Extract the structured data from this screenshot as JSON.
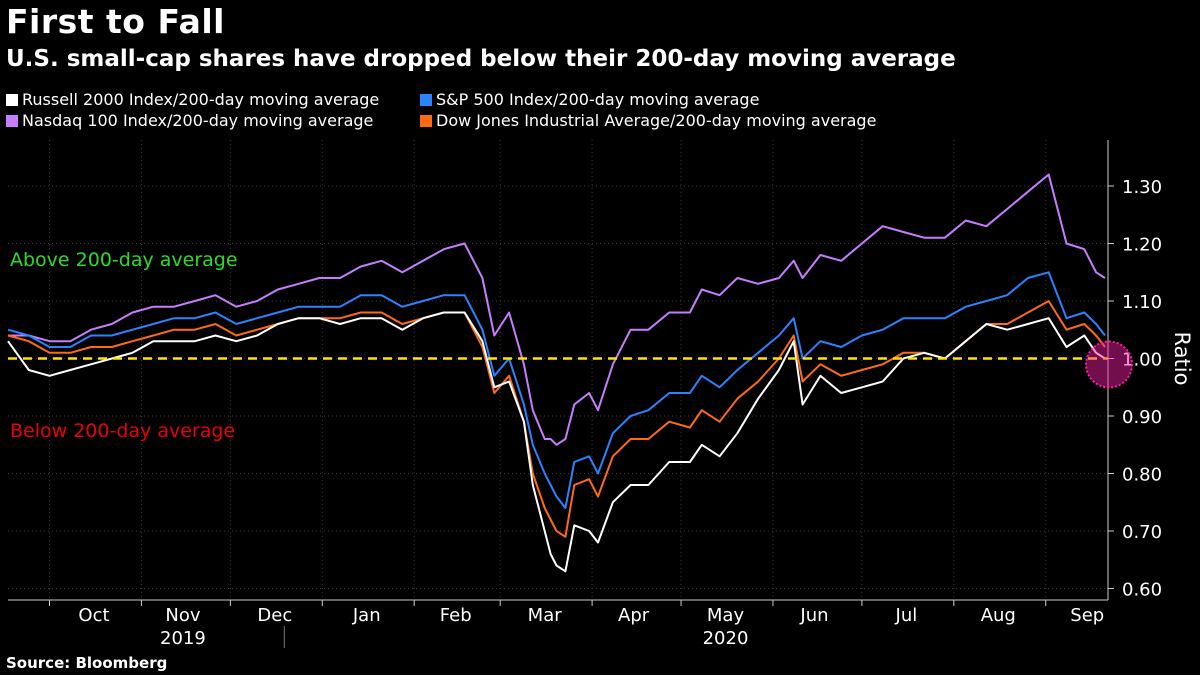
{
  "title": "First to Fall",
  "subtitle": "U.S. small-cap shares have dropped below their 200-day moving average",
  "source": "Source: Bloomberg",
  "chart_data": {
    "type": "line",
    "ylabel": "Ratio",
    "ylim": [
      0.58,
      1.38
    ],
    "yticks": [
      0.6,
      0.7,
      0.8,
      0.9,
      1.0,
      1.1,
      1.2,
      1.3
    ],
    "ytick_labels": [
      "0.60",
      "0.70",
      "0.80",
      "0.90",
      "1.00",
      "1.10",
      "1.20",
      "1.30"
    ],
    "xlim": [
      "2019-09-17",
      "2020-09-22"
    ],
    "x_month_labels": [
      {
        "label": "Oct",
        "date": "2019-10-16"
      },
      {
        "label": "Nov",
        "date": "2019-11-15"
      },
      {
        "label": "Dec",
        "date": "2019-12-16"
      },
      {
        "label": "Jan",
        "date": "2020-01-16"
      },
      {
        "label": "Feb",
        "date": "2020-02-15"
      },
      {
        "label": "Mar",
        "date": "2020-03-16"
      },
      {
        "label": "Apr",
        "date": "2020-04-15"
      },
      {
        "label": "May",
        "date": "2020-05-16"
      },
      {
        "label": "Jun",
        "date": "2020-06-15"
      },
      {
        "label": "Jul",
        "date": "2020-07-16"
      },
      {
        "label": "Aug",
        "date": "2020-08-16"
      },
      {
        "label": "Sep",
        "date": "2020-09-15"
      }
    ],
    "x_year_labels": [
      {
        "label": "2019",
        "date": "2019-11-15"
      },
      {
        "label": "2020",
        "date": "2020-05-16"
      }
    ],
    "reference_line": {
      "value": 1.0,
      "color": "#ffe600"
    },
    "annotations": [
      {
        "text": "Above 200-day average",
        "color": "#2bdc2b"
      },
      {
        "text": "Below 200-day average",
        "color": "#e8000b"
      }
    ],
    "highlight": {
      "date": "2020-09-21",
      "value": 1.0,
      "color": "#ff1fa8"
    },
    "series": [
      {
        "name": "Russell 2000 Index/200-day moving average",
        "color": "#ffffff",
        "points": [
          [
            "2019-09-17",
            1.03
          ],
          [
            "2019-09-24",
            0.98
          ],
          [
            "2019-10-01",
            0.97
          ],
          [
            "2019-10-08",
            0.98
          ],
          [
            "2019-10-15",
            0.99
          ],
          [
            "2019-10-22",
            1.0
          ],
          [
            "2019-10-29",
            1.01
          ],
          [
            "2019-11-05",
            1.03
          ],
          [
            "2019-11-12",
            1.03
          ],
          [
            "2019-11-19",
            1.03
          ],
          [
            "2019-11-26",
            1.04
          ],
          [
            "2019-12-03",
            1.03
          ],
          [
            "2019-12-10",
            1.04
          ],
          [
            "2019-12-17",
            1.06
          ],
          [
            "2019-12-24",
            1.07
          ],
          [
            "2019-12-31",
            1.07
          ],
          [
            "2020-01-07",
            1.06
          ],
          [
            "2020-01-14",
            1.07
          ],
          [
            "2020-01-21",
            1.07
          ],
          [
            "2020-01-28",
            1.05
          ],
          [
            "2020-02-04",
            1.07
          ],
          [
            "2020-02-11",
            1.08
          ],
          [
            "2020-02-18",
            1.08
          ],
          [
            "2020-02-24",
            1.03
          ],
          [
            "2020-02-28",
            0.95
          ],
          [
            "2020-03-04",
            0.96
          ],
          [
            "2020-03-09",
            0.89
          ],
          [
            "2020-03-12",
            0.78
          ],
          [
            "2020-03-16",
            0.7
          ],
          [
            "2020-03-18",
            0.66
          ],
          [
            "2020-03-20",
            0.64
          ],
          [
            "2020-03-23",
            0.63
          ],
          [
            "2020-03-26",
            0.71
          ],
          [
            "2020-03-31",
            0.7
          ],
          [
            "2020-04-03",
            0.68
          ],
          [
            "2020-04-08",
            0.75
          ],
          [
            "2020-04-14",
            0.78
          ],
          [
            "2020-04-20",
            0.78
          ],
          [
            "2020-04-27",
            0.82
          ],
          [
            "2020-05-04",
            0.82
          ],
          [
            "2020-05-08",
            0.85
          ],
          [
            "2020-05-14",
            0.83
          ],
          [
            "2020-05-20",
            0.87
          ],
          [
            "2020-05-27",
            0.93
          ],
          [
            "2020-06-03",
            0.98
          ],
          [
            "2020-06-08",
            1.03
          ],
          [
            "2020-06-11",
            0.92
          ],
          [
            "2020-06-17",
            0.97
          ],
          [
            "2020-06-24",
            0.94
          ],
          [
            "2020-07-01",
            0.95
          ],
          [
            "2020-07-08",
            0.96
          ],
          [
            "2020-07-15",
            1.0
          ],
          [
            "2020-07-22",
            1.01
          ],
          [
            "2020-07-29",
            1.0
          ],
          [
            "2020-08-05",
            1.03
          ],
          [
            "2020-08-12",
            1.06
          ],
          [
            "2020-08-19",
            1.05
          ],
          [
            "2020-08-26",
            1.06
          ],
          [
            "2020-09-02",
            1.07
          ],
          [
            "2020-09-08",
            1.02
          ],
          [
            "2020-09-14",
            1.04
          ],
          [
            "2020-09-18",
            1.01
          ],
          [
            "2020-09-21",
            1.0
          ]
        ]
      },
      {
        "name": "S&P 500 Index/200-day moving average",
        "color": "#2b83ff",
        "points": [
          [
            "2019-09-17",
            1.05
          ],
          [
            "2019-09-24",
            1.04
          ],
          [
            "2019-10-01",
            1.02
          ],
          [
            "2019-10-08",
            1.02
          ],
          [
            "2019-10-15",
            1.04
          ],
          [
            "2019-10-22",
            1.04
          ],
          [
            "2019-10-29",
            1.05
          ],
          [
            "2019-11-05",
            1.06
          ],
          [
            "2019-11-12",
            1.07
          ],
          [
            "2019-11-19",
            1.07
          ],
          [
            "2019-11-26",
            1.08
          ],
          [
            "2019-12-03",
            1.06
          ],
          [
            "2019-12-10",
            1.07
          ],
          [
            "2019-12-17",
            1.08
          ],
          [
            "2019-12-24",
            1.09
          ],
          [
            "2019-12-31",
            1.09
          ],
          [
            "2020-01-07",
            1.09
          ],
          [
            "2020-01-14",
            1.11
          ],
          [
            "2020-01-21",
            1.11
          ],
          [
            "2020-01-28",
            1.09
          ],
          [
            "2020-02-04",
            1.1
          ],
          [
            "2020-02-11",
            1.11
          ],
          [
            "2020-02-18",
            1.11
          ],
          [
            "2020-02-24",
            1.05
          ],
          [
            "2020-02-28",
            0.97
          ],
          [
            "2020-03-04",
            1.0
          ],
          [
            "2020-03-09",
            0.92
          ],
          [
            "2020-03-12",
            0.85
          ],
          [
            "2020-03-16",
            0.8
          ],
          [
            "2020-03-18",
            0.78
          ],
          [
            "2020-03-20",
            0.76
          ],
          [
            "2020-03-23",
            0.74
          ],
          [
            "2020-03-26",
            0.82
          ],
          [
            "2020-03-31",
            0.83
          ],
          [
            "2020-04-03",
            0.8
          ],
          [
            "2020-04-08",
            0.87
          ],
          [
            "2020-04-14",
            0.9
          ],
          [
            "2020-04-20",
            0.91
          ],
          [
            "2020-04-27",
            0.94
          ],
          [
            "2020-05-04",
            0.94
          ],
          [
            "2020-05-08",
            0.97
          ],
          [
            "2020-05-14",
            0.95
          ],
          [
            "2020-05-20",
            0.98
          ],
          [
            "2020-05-27",
            1.01
          ],
          [
            "2020-06-03",
            1.04
          ],
          [
            "2020-06-08",
            1.07
          ],
          [
            "2020-06-11",
            1.0
          ],
          [
            "2020-06-17",
            1.03
          ],
          [
            "2020-06-24",
            1.02
          ],
          [
            "2020-07-01",
            1.04
          ],
          [
            "2020-07-08",
            1.05
          ],
          [
            "2020-07-15",
            1.07
          ],
          [
            "2020-07-22",
            1.07
          ],
          [
            "2020-07-29",
            1.07
          ],
          [
            "2020-08-05",
            1.09
          ],
          [
            "2020-08-12",
            1.1
          ],
          [
            "2020-08-19",
            1.11
          ],
          [
            "2020-08-26",
            1.14
          ],
          [
            "2020-09-02",
            1.15
          ],
          [
            "2020-09-08",
            1.07
          ],
          [
            "2020-09-14",
            1.08
          ],
          [
            "2020-09-18",
            1.06
          ],
          [
            "2020-09-21",
            1.04
          ]
        ]
      },
      {
        "name": "Nasdaq 100 Index/200-day moving average",
        "color": "#c77dff",
        "points": [
          [
            "2019-09-17",
            1.04
          ],
          [
            "2019-09-24",
            1.04
          ],
          [
            "2019-10-01",
            1.03
          ],
          [
            "2019-10-08",
            1.03
          ],
          [
            "2019-10-15",
            1.05
          ],
          [
            "2019-10-22",
            1.06
          ],
          [
            "2019-10-29",
            1.08
          ],
          [
            "2019-11-05",
            1.09
          ],
          [
            "2019-11-12",
            1.09
          ],
          [
            "2019-11-19",
            1.1
          ],
          [
            "2019-11-26",
            1.11
          ],
          [
            "2019-12-03",
            1.09
          ],
          [
            "2019-12-10",
            1.1
          ],
          [
            "2019-12-17",
            1.12
          ],
          [
            "2019-12-24",
            1.13
          ],
          [
            "2019-12-31",
            1.14
          ],
          [
            "2020-01-07",
            1.14
          ],
          [
            "2020-01-14",
            1.16
          ],
          [
            "2020-01-21",
            1.17
          ],
          [
            "2020-01-28",
            1.15
          ],
          [
            "2020-02-04",
            1.17
          ],
          [
            "2020-02-11",
            1.19
          ],
          [
            "2020-02-18",
            1.2
          ],
          [
            "2020-02-24",
            1.14
          ],
          [
            "2020-02-28",
            1.04
          ],
          [
            "2020-03-04",
            1.08
          ],
          [
            "2020-03-09",
            0.99
          ],
          [
            "2020-03-12",
            0.91
          ],
          [
            "2020-03-16",
            0.86
          ],
          [
            "2020-03-18",
            0.86
          ],
          [
            "2020-03-20",
            0.85
          ],
          [
            "2020-03-23",
            0.86
          ],
          [
            "2020-03-26",
            0.92
          ],
          [
            "2020-03-31",
            0.94
          ],
          [
            "2020-04-03",
            0.91
          ],
          [
            "2020-04-08",
            0.99
          ],
          [
            "2020-04-14",
            1.05
          ],
          [
            "2020-04-20",
            1.05
          ],
          [
            "2020-04-27",
            1.08
          ],
          [
            "2020-05-04",
            1.08
          ],
          [
            "2020-05-08",
            1.12
          ],
          [
            "2020-05-14",
            1.11
          ],
          [
            "2020-05-20",
            1.14
          ],
          [
            "2020-05-27",
            1.13
          ],
          [
            "2020-06-03",
            1.14
          ],
          [
            "2020-06-08",
            1.17
          ],
          [
            "2020-06-11",
            1.14
          ],
          [
            "2020-06-17",
            1.18
          ],
          [
            "2020-06-24",
            1.17
          ],
          [
            "2020-07-01",
            1.2
          ],
          [
            "2020-07-08",
            1.23
          ],
          [
            "2020-07-15",
            1.22
          ],
          [
            "2020-07-22",
            1.21
          ],
          [
            "2020-07-29",
            1.21
          ],
          [
            "2020-08-05",
            1.24
          ],
          [
            "2020-08-12",
            1.23
          ],
          [
            "2020-08-19",
            1.26
          ],
          [
            "2020-08-26",
            1.29
          ],
          [
            "2020-09-02",
            1.32
          ],
          [
            "2020-09-08",
            1.2
          ],
          [
            "2020-09-14",
            1.19
          ],
          [
            "2020-09-18",
            1.15
          ],
          [
            "2020-09-21",
            1.14
          ]
        ]
      },
      {
        "name": "Dow Jones Industrial Average/200-day moving average",
        "color": "#ff6a13",
        "points": [
          [
            "2019-09-17",
            1.04
          ],
          [
            "2019-09-24",
            1.03
          ],
          [
            "2019-10-01",
            1.01
          ],
          [
            "2019-10-08",
            1.01
          ],
          [
            "2019-10-15",
            1.02
          ],
          [
            "2019-10-22",
            1.02
          ],
          [
            "2019-10-29",
            1.03
          ],
          [
            "2019-11-05",
            1.04
          ],
          [
            "2019-11-12",
            1.05
          ],
          [
            "2019-11-19",
            1.05
          ],
          [
            "2019-11-26",
            1.06
          ],
          [
            "2019-12-03",
            1.04
          ],
          [
            "2019-12-10",
            1.05
          ],
          [
            "2019-12-17",
            1.06
          ],
          [
            "2019-12-24",
            1.07
          ],
          [
            "2019-12-31",
            1.07
          ],
          [
            "2020-01-07",
            1.07
          ],
          [
            "2020-01-14",
            1.08
          ],
          [
            "2020-01-21",
            1.08
          ],
          [
            "2020-01-28",
            1.06
          ],
          [
            "2020-02-04",
            1.07
          ],
          [
            "2020-02-11",
            1.08
          ],
          [
            "2020-02-18",
            1.08
          ],
          [
            "2020-02-24",
            1.02
          ],
          [
            "2020-02-28",
            0.94
          ],
          [
            "2020-03-04",
            0.97
          ],
          [
            "2020-03-09",
            0.89
          ],
          [
            "2020-03-12",
            0.8
          ],
          [
            "2020-03-16",
            0.74
          ],
          [
            "2020-03-18",
            0.72
          ],
          [
            "2020-03-20",
            0.7
          ],
          [
            "2020-03-23",
            0.69
          ],
          [
            "2020-03-26",
            0.78
          ],
          [
            "2020-03-31",
            0.79
          ],
          [
            "2020-04-03",
            0.76
          ],
          [
            "2020-04-08",
            0.83
          ],
          [
            "2020-04-14",
            0.86
          ],
          [
            "2020-04-20",
            0.86
          ],
          [
            "2020-04-27",
            0.89
          ],
          [
            "2020-05-04",
            0.88
          ],
          [
            "2020-05-08",
            0.91
          ],
          [
            "2020-05-14",
            0.89
          ],
          [
            "2020-05-20",
            0.93
          ],
          [
            "2020-05-27",
            0.96
          ],
          [
            "2020-06-03",
            1.0
          ],
          [
            "2020-06-08",
            1.04
          ],
          [
            "2020-06-11",
            0.96
          ],
          [
            "2020-06-17",
            0.99
          ],
          [
            "2020-06-24",
            0.97
          ],
          [
            "2020-07-01",
            0.98
          ],
          [
            "2020-07-08",
            0.99
          ],
          [
            "2020-07-15",
            1.01
          ],
          [
            "2020-07-22",
            1.01
          ],
          [
            "2020-07-29",
            1.0
          ],
          [
            "2020-08-05",
            1.03
          ],
          [
            "2020-08-12",
            1.06
          ],
          [
            "2020-08-19",
            1.06
          ],
          [
            "2020-08-26",
            1.08
          ],
          [
            "2020-09-02",
            1.1
          ],
          [
            "2020-09-08",
            1.05
          ],
          [
            "2020-09-14",
            1.06
          ],
          [
            "2020-09-18",
            1.04
          ],
          [
            "2020-09-21",
            1.02
          ]
        ]
      }
    ]
  }
}
